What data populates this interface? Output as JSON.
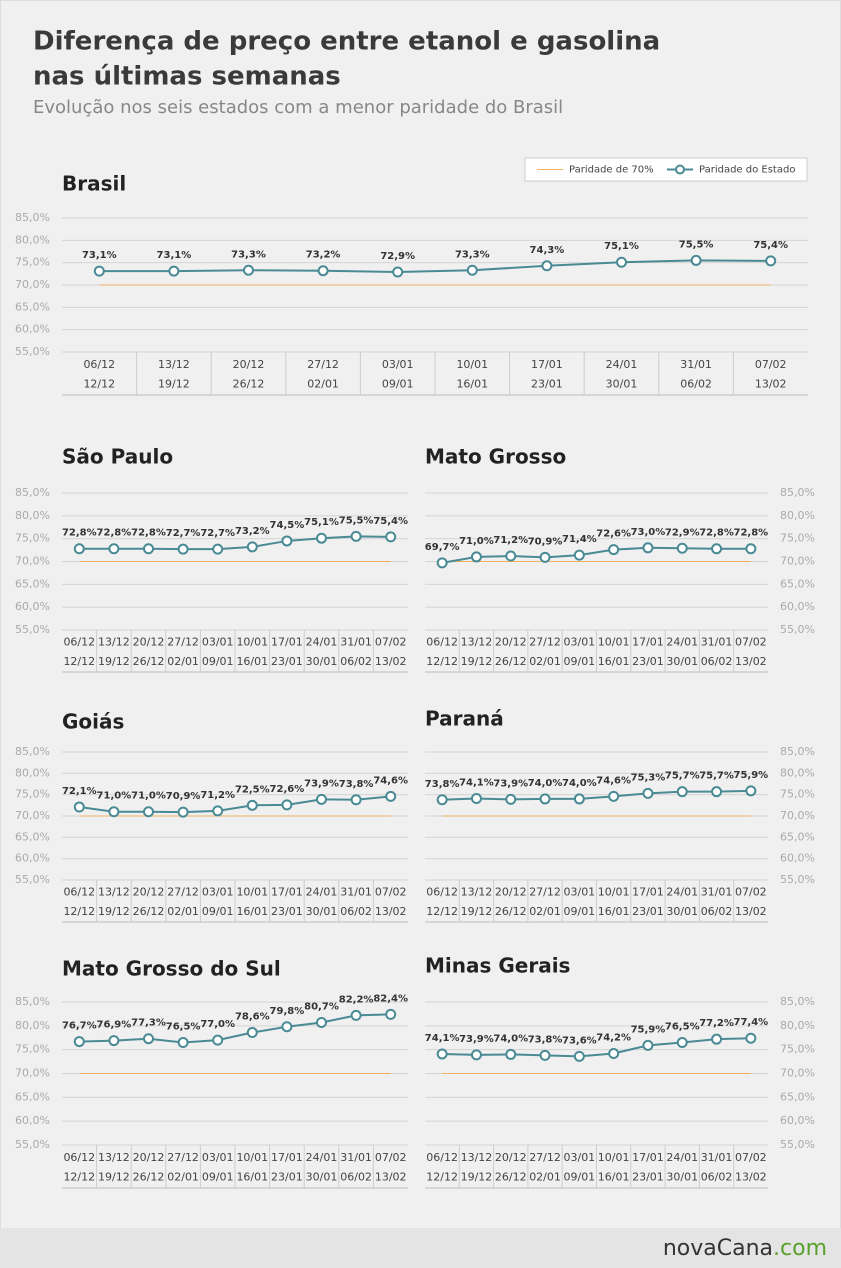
{
  "title": [
    "Diferença de preço entre etanol e gasolina",
    "nas últimas semanas"
  ],
  "subtitle": "Evolução nos seis estados com a menor paridade do Brasil",
  "brand": {
    "name": "novaCana",
    "domain": ".com"
  },
  "chart_data": [
    {
      "type": "line",
      "title": "Brasil",
      "legend": "top-right",
      "yaxis_side": "left",
      "grid": true,
      "categories": [
        [
          "06/12",
          "12/12"
        ],
        [
          "13/12",
          "19/12"
        ],
        [
          "20/12",
          "26/12"
        ],
        [
          "27/12",
          "02/01"
        ],
        [
          "03/01",
          "09/01"
        ],
        [
          "10/01",
          "16/01"
        ],
        [
          "17/01",
          "23/01"
        ],
        [
          "24/01",
          "30/01"
        ],
        [
          "31/01",
          "06/02"
        ],
        [
          "07/02",
          "13/02"
        ]
      ],
      "ylim": [
        55,
        85
      ],
      "yticks": [
        {
          "value": 55,
          "label": "55,0%"
        },
        {
          "value": 60,
          "label": "60,0%"
        },
        {
          "value": 65,
          "label": "65,0%"
        },
        {
          "value": 70,
          "label": "70,0%"
        },
        {
          "value": 75,
          "label": "75,0%"
        },
        {
          "value": 80,
          "label": "80,0%"
        },
        {
          "value": 85,
          "label": "85,0%"
        }
      ],
      "series": [
        {
          "name": "Paridade de 70%",
          "color": "#f0b060",
          "values": [
            70,
            70,
            70,
            70,
            70,
            70,
            70,
            70,
            70,
            70
          ]
        },
        {
          "name": "Paridade do Estado",
          "color": "#4a8a94",
          "markers": true,
          "values": [
            73.1,
            73.1,
            73.3,
            73.2,
            72.9,
            73.3,
            74.3,
            75.1,
            75.5,
            75.4
          ],
          "value_labels": [
            "73,1%",
            "73,1%",
            "73,3%",
            "73,2%",
            "72,9%",
            "73,3%",
            "74,3%",
            "75,1%",
            "75,5%",
            "75,4%"
          ]
        }
      ]
    },
    {
      "type": "line",
      "title": "São Paulo",
      "yaxis_side": "left",
      "grid": true,
      "categories": [
        [
          "06/12",
          "12/12"
        ],
        [
          "13/12",
          "19/12"
        ],
        [
          "20/12",
          "26/12"
        ],
        [
          "27/12",
          "02/01"
        ],
        [
          "03/01",
          "09/01"
        ],
        [
          "10/01",
          "16/01"
        ],
        [
          "17/01",
          "23/01"
        ],
        [
          "24/01",
          "30/01"
        ],
        [
          "31/01",
          "06/02"
        ],
        [
          "07/02",
          "13/02"
        ]
      ],
      "ylim": [
        55,
        85
      ],
      "yticks": [
        {
          "value": 55,
          "label": "55,0%"
        },
        {
          "value": 60,
          "label": "60,0%"
        },
        {
          "value": 65,
          "label": "65,0%"
        },
        {
          "value": 70,
          "label": "70,0%"
        },
        {
          "value": 75,
          "label": "75,0%"
        },
        {
          "value": 80,
          "label": "80,0%"
        },
        {
          "value": 85,
          "label": "85,0%"
        }
      ],
      "series": [
        {
          "color": "#f0b060",
          "values": [
            70,
            70,
            70,
            70,
            70,
            70,
            70,
            70,
            70,
            70
          ]
        },
        {
          "color": "#4a8a94",
          "markers": true,
          "values": [
            72.8,
            72.8,
            72.8,
            72.7,
            72.7,
            73.2,
            74.5,
            75.1,
            75.5,
            75.4
          ],
          "value_labels": [
            "72,8%",
            "72,8%",
            "72,8%",
            "72,7%",
            "72,7%",
            "73,2%",
            "74,5%",
            "75,1%",
            "75,5%",
            "75,4%"
          ]
        }
      ]
    },
    {
      "type": "line",
      "title": "Mato Grosso",
      "yaxis_side": "right",
      "grid": true,
      "categories": [
        [
          "06/12",
          "12/12"
        ],
        [
          "13/12",
          "19/12"
        ],
        [
          "20/12",
          "26/12"
        ],
        [
          "27/12",
          "02/01"
        ],
        [
          "03/01",
          "09/01"
        ],
        [
          "10/01",
          "16/01"
        ],
        [
          "17/01",
          "23/01"
        ],
        [
          "24/01",
          "30/01"
        ],
        [
          "31/01",
          "06/02"
        ],
        [
          "07/02",
          "13/02"
        ]
      ],
      "ylim": [
        55,
        85
      ],
      "yticks": [
        {
          "value": 55,
          "label": "55,0%"
        },
        {
          "value": 60,
          "label": "60,0%"
        },
        {
          "value": 65,
          "label": "65,0%"
        },
        {
          "value": 70,
          "label": "70,0%"
        },
        {
          "value": 75,
          "label": "75,0%"
        },
        {
          "value": 80,
          "label": "80,0%"
        },
        {
          "value": 85,
          "label": "85,0%"
        }
      ],
      "series": [
        {
          "color": "#f0b060",
          "values": [
            70,
            70,
            70,
            70,
            70,
            70,
            70,
            70,
            70,
            70
          ]
        },
        {
          "color": "#4a8a94",
          "markers": true,
          "values": [
            69.7,
            71.0,
            71.2,
            70.9,
            71.4,
            72.6,
            73.0,
            72.9,
            72.8,
            72.8
          ],
          "value_labels": [
            "69,7%",
            "71,0%",
            "71,2%",
            "70,9%",
            "71,4%",
            "72,6%",
            "73,0%",
            "72,9%",
            "72,8%",
            "72,8%"
          ]
        }
      ]
    },
    {
      "type": "line",
      "title": "Goiás",
      "yaxis_side": "left",
      "grid": true,
      "categories": [
        [
          "06/12",
          "12/12"
        ],
        [
          "13/12",
          "19/12"
        ],
        [
          "20/12",
          "26/12"
        ],
        [
          "27/12",
          "02/01"
        ],
        [
          "03/01",
          "09/01"
        ],
        [
          "10/01",
          "16/01"
        ],
        [
          "17/01",
          "23/01"
        ],
        [
          "24/01",
          "30/01"
        ],
        [
          "31/01",
          "06/02"
        ],
        [
          "07/02",
          "13/02"
        ]
      ],
      "ylim": [
        55,
        85
      ],
      "yticks": [
        {
          "value": 55,
          "label": "55,0%"
        },
        {
          "value": 60,
          "label": "60,0%"
        },
        {
          "value": 65,
          "label": "65,0%"
        },
        {
          "value": 70,
          "label": "70,0%"
        },
        {
          "value": 75,
          "label": "75,0%"
        },
        {
          "value": 80,
          "label": "80,0%"
        },
        {
          "value": 85,
          "label": "85,0%"
        }
      ],
      "series": [
        {
          "color": "#f0b060",
          "values": [
            70,
            70,
            70,
            70,
            70,
            70,
            70,
            70,
            70,
            70
          ]
        },
        {
          "color": "#4a8a94",
          "markers": true,
          "values": [
            72.1,
            71.0,
            71.0,
            70.9,
            71.2,
            72.5,
            72.6,
            73.9,
            73.8,
            74.6
          ],
          "value_labels": [
            "72,1%",
            "71,0%",
            "71,0%",
            "70,9%",
            "71,2%",
            "72,5%",
            "72,6%",
            "73,9%",
            "73,8%",
            "74,6%"
          ]
        }
      ]
    },
    {
      "type": "line",
      "title": "Paraná",
      "yaxis_side": "right",
      "grid": true,
      "categories": [
        [
          "06/12",
          "12/12"
        ],
        [
          "13/12",
          "19/12"
        ],
        [
          "20/12",
          "26/12"
        ],
        [
          "27/12",
          "02/01"
        ],
        [
          "03/01",
          "09/01"
        ],
        [
          "10/01",
          "16/01"
        ],
        [
          "17/01",
          "23/01"
        ],
        [
          "24/01",
          "30/01"
        ],
        [
          "31/01",
          "06/02"
        ],
        [
          "07/02",
          "13/02"
        ]
      ],
      "ylim": [
        55,
        85
      ],
      "yticks": [
        {
          "value": 55,
          "label": "55,0%"
        },
        {
          "value": 60,
          "label": "60,0%"
        },
        {
          "value": 65,
          "label": "65,0%"
        },
        {
          "value": 70,
          "label": "70,0%"
        },
        {
          "value": 75,
          "label": "75,0%"
        },
        {
          "value": 80,
          "label": "80,0%"
        },
        {
          "value": 85,
          "label": "85,0%"
        }
      ],
      "series": [
        {
          "color": "#f0b060",
          "values": [
            70,
            70,
            70,
            70,
            70,
            70,
            70,
            70,
            70,
            70
          ]
        },
        {
          "color": "#4a8a94",
          "markers": true,
          "values": [
            73.8,
            74.1,
            73.9,
            74.0,
            74.0,
            74.6,
            75.3,
            75.7,
            75.7,
            75.9
          ],
          "value_labels": [
            "73,8%",
            "74,1%",
            "73,9%",
            "74,0%",
            "74,0%",
            "74,6%",
            "75,3%",
            "75,7%",
            "75,7%",
            "75,9%"
          ]
        }
      ]
    },
    {
      "type": "line",
      "title": "Mato Grosso do Sul",
      "yaxis_side": "left",
      "grid": true,
      "categories": [
        [
          "06/12",
          "12/12"
        ],
        [
          "13/12",
          "19/12"
        ],
        [
          "20/12",
          "26/12"
        ],
        [
          "27/12",
          "02/01"
        ],
        [
          "03/01",
          "09/01"
        ],
        [
          "10/01",
          "16/01"
        ],
        [
          "17/01",
          "23/01"
        ],
        [
          "24/01",
          "30/01"
        ],
        [
          "31/01",
          "06/02"
        ],
        [
          "07/02",
          "13/02"
        ]
      ],
      "ylim": [
        55,
        85
      ],
      "yticks": [
        {
          "value": 55,
          "label": "55,0%"
        },
        {
          "value": 60,
          "label": "60,0%"
        },
        {
          "value": 65,
          "label": "65,0%"
        },
        {
          "value": 70,
          "label": "70,0%"
        },
        {
          "value": 75,
          "label": "75,0%"
        },
        {
          "value": 80,
          "label": "80,0%"
        },
        {
          "value": 85,
          "label": "85,0%"
        }
      ],
      "series": [
        {
          "color": "#f0b060",
          "values": [
            70,
            70,
            70,
            70,
            70,
            70,
            70,
            70,
            70,
            70
          ]
        },
        {
          "color": "#4a8a94",
          "markers": true,
          "values": [
            76.7,
            76.9,
            77.3,
            76.5,
            77.0,
            78.6,
            79.8,
            80.7,
            82.2,
            82.4
          ],
          "value_labels": [
            "76,7%",
            "76,9%",
            "77,3%",
            "76,5%",
            "77,0%",
            "78,6%",
            "79,8%",
            "80,7%",
            "82,2%",
            "82,4%"
          ]
        }
      ]
    },
    {
      "type": "line",
      "title": "Minas Gerais",
      "yaxis_side": "right",
      "grid": true,
      "categories": [
        [
          "06/12",
          "12/12"
        ],
        [
          "13/12",
          "19/12"
        ],
        [
          "20/12",
          "26/12"
        ],
        [
          "27/12",
          "02/01"
        ],
        [
          "03/01",
          "09/01"
        ],
        [
          "10/01",
          "16/01"
        ],
        [
          "17/01",
          "23/01"
        ],
        [
          "24/01",
          "30/01"
        ],
        [
          "31/01",
          "06/02"
        ],
        [
          "07/02",
          "13/02"
        ]
      ],
      "ylim": [
        55,
        85
      ],
      "yticks": [
        {
          "value": 55,
          "label": "55,0%"
        },
        {
          "value": 60,
          "label": "60,0%"
        },
        {
          "value": 65,
          "label": "65,0%"
        },
        {
          "value": 70,
          "label": "70,0%"
        },
        {
          "value": 75,
          "label": "75,0%"
        },
        {
          "value": 80,
          "label": "80,0%"
        },
        {
          "value": 85,
          "label": "85,0%"
        }
      ],
      "series": [
        {
          "color": "#f0b060",
          "values": [
            70,
            70,
            70,
            70,
            70,
            70,
            70,
            70,
            70,
            70
          ]
        },
        {
          "color": "#4a8a94",
          "markers": true,
          "values": [
            74.1,
            73.9,
            74.0,
            73.8,
            73.6,
            74.2,
            75.9,
            76.5,
            77.2,
            77.4
          ],
          "value_labels": [
            "74,1%",
            "73,9%",
            "74,0%",
            "73,8%",
            "73,6%",
            "74,2%",
            "75,9%",
            "76,5%",
            "77,2%",
            "77,4%"
          ]
        }
      ]
    }
  ]
}
